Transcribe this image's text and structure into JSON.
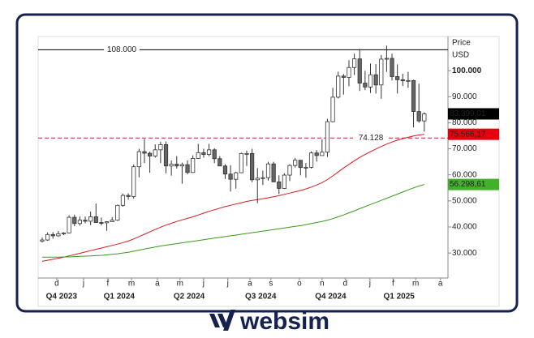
{
  "chart_data": {
    "type": "candlestick",
    "axis_title": "Price",
    "axis_unit": "USD",
    "xlim": [
      -0.75,
      75.4
    ],
    "xticks": [
      {
        "value": 2.7,
        "label": "d"
      },
      {
        "value": 7.7,
        "label": "j"
      },
      {
        "value": 12.2,
        "label": "f"
      },
      {
        "value": 16.6,
        "label": "m"
      },
      {
        "value": 21.4,
        "label": "a"
      },
      {
        "value": 25.6,
        "label": "m"
      },
      {
        "value": 30,
        "label": "j"
      },
      {
        "value": 34.5,
        "label": "j"
      },
      {
        "value": 38.6,
        "label": "a"
      },
      {
        "value": 42.5,
        "label": "s"
      },
      {
        "value": 47.8,
        "label": "o"
      },
      {
        "value": 52,
        "label": "n"
      },
      {
        "value": 56.3,
        "label": "d"
      },
      {
        "value": 60.9,
        "label": "j"
      },
      {
        "value": 65.2,
        "label": "f"
      },
      {
        "value": 69.4,
        "label": "m"
      },
      {
        "value": 74,
        "label": "a"
      }
    ],
    "xgroups": [
      {
        "value": 3.6,
        "label": "Q4 2023"
      },
      {
        "value": 14.3,
        "label": "Q1 2024"
      },
      {
        "value": 27.3,
        "label": "Q2 2024"
      },
      {
        "value": 40.6,
        "label": "Q3 2024"
      },
      {
        "value": 53.6,
        "label": "Q4 2024"
      },
      {
        "value": 66.3,
        "label": "Q1 2025"
      }
    ],
    "ylim": [
      20400,
      113100
    ],
    "yticks": [
      {
        "value": 30000,
        "label": "30.000"
      },
      {
        "value": 40000,
        "label": "40.000"
      },
      {
        "value": 50000,
        "label": "50.000"
      },
      {
        "value": 60000,
        "label": "60.000"
      },
      {
        "value": 70000,
        "label": "70.000"
      },
      {
        "value": 80000,
        "label": "80.000"
      },
      {
        "value": 90000,
        "label": "90.000"
      },
      {
        "value": 100000,
        "label": "100.000"
      }
    ],
    "up_color": "#ffffff",
    "down_color": "#666666",
    "open": [
      34500,
      35000,
      37100,
      36600,
      37400,
      37700,
      43700,
      41300,
      42600,
      42200,
      43900,
      41700,
      41600,
      42000,
      42600,
      48300,
      52100,
      51700,
      63100,
      68900,
      68300,
      67200,
      69600,
      71600,
      63400,
      64100,
      63400,
      63900,
      60900,
      66300,
      68500,
      67800,
      69600,
      66200,
      63400,
      60300,
      58300,
      60800,
      68200,
      68200,
      58100,
      58700,
      58900,
      64200,
      57300,
      54800,
      59900,
      63600,
      65600,
      62800,
      62900,
      68400,
      67400,
      68700,
      80400,
      89800,
      97900,
      97400,
      101200,
      104500,
      95200,
      93700,
      98400,
      94500,
      104400,
      104700,
      97700,
      96500,
      96100,
      96200,
      84300,
      80700
    ],
    "high": [
      36000,
      37900,
      38000,
      38400,
      38000,
      44500,
      44700,
      44000,
      44000,
      45900,
      49000,
      43600,
      42200,
      43800,
      48600,
      52800,
      52900,
      64000,
      70000,
      73800,
      68900,
      71700,
      72700,
      72800,
      65500,
      67200,
      64700,
      65500,
      67500,
      71900,
      70000,
      71900,
      70200,
      67200,
      64100,
      63700,
      61200,
      68500,
      69300,
      70000,
      62600,
      61600,
      65000,
      65000,
      59800,
      60600,
      64100,
      66500,
      65600,
      64500,
      69000,
      69500,
      73600,
      81500,
      93400,
      99600,
      98700,
      104000,
      106500,
      108300,
      99900,
      102700,
      102500,
      106000,
      109600,
      106500,
      102400,
      98800,
      99500,
      96500,
      95000,
      84000
    ],
    "low": [
      34000,
      34700,
      35500,
      36200,
      36900,
      37600,
      40300,
      40500,
      41400,
      40700,
      41700,
      40600,
      38500,
      41900,
      42300,
      47800,
      50500,
      50900,
      59000,
      64500,
      60800,
      66600,
      64500,
      60600,
      59700,
      62400,
      56600,
      60200,
      60800,
      66100,
      66600,
      67200,
      64500,
      63400,
      58400,
      53600,
      54700,
      60700,
      63400,
      57200,
      49100,
      56100,
      57800,
      57200,
      52600,
      54600,
      57600,
      62800,
      59800,
      58900,
      62400,
      65100,
      67400,
      66900,
      80200,
      89300,
      90800,
      94000,
      98300,
      92200,
      92500,
      91400,
      91200,
      89200,
      99500,
      96200,
      91200,
      94100,
      93400,
      78200,
      80000,
      76600
    ],
    "close": [
      35000,
      37100,
      36600,
      37400,
      37700,
      43700,
      41300,
      42600,
      42200,
      43900,
      41700,
      41600,
      42000,
      42600,
      48300,
      52100,
      51700,
      63100,
      68900,
      68300,
      67200,
      69600,
      71600,
      63400,
      64100,
      63400,
      63900,
      60900,
      66300,
      68500,
      67800,
      69600,
      66200,
      63400,
      60300,
      58300,
      60800,
      68200,
      68200,
      58100,
      58700,
      58900,
      64200,
      57300,
      54800,
      59900,
      63600,
      65600,
      62800,
      62900,
      68400,
      67400,
      68700,
      80400,
      89800,
      97900,
      97400,
      101200,
      104500,
      95200,
      93700,
      98400,
      94500,
      104400,
      104700,
      97700,
      96500,
      96100,
      96200,
      84300,
      80700,
      83400
    ],
    "overlays": [
      {
        "color": "#d71920",
        "values": [
          26800,
          27200,
          27600,
          28000,
          28400,
          28900,
          29400,
          29900,
          30400,
          30900,
          31400,
          31900,
          32400,
          32900,
          33400,
          34000,
          34600,
          35400,
          36300,
          37200,
          38100,
          39000,
          39900,
          40700,
          41400,
          42100,
          42700,
          43300,
          43900,
          44600,
          45300,
          46000,
          46600,
          47200,
          47800,
          48300,
          48800,
          49300,
          49800,
          50200,
          50500,
          50800,
          51200,
          51600,
          52000,
          52500,
          53000,
          53500,
          54000,
          54600,
          55300,
          56100,
          57000,
          58200,
          59600,
          61100,
          62600,
          64000,
          65400,
          66700,
          67800,
          68900,
          69900,
          70900,
          71800,
          72600,
          73300,
          73900,
          74400,
          74900,
          75300,
          75566.17
        ]
      },
      {
        "color": "#3a9a1a",
        "values": [
          28400,
          28400,
          28400,
          28400,
          28500,
          28500,
          28600,
          28700,
          28800,
          28900,
          29000,
          29100,
          29300,
          29500,
          29700,
          30000,
          30300,
          30700,
          31100,
          31500,
          31900,
          32300,
          32700,
          33000,
          33300,
          33600,
          33900,
          34200,
          34500,
          34800,
          35100,
          35400,
          35700,
          36000,
          36300,
          36600,
          36900,
          37200,
          37500,
          37800,
          38100,
          38400,
          38700,
          39000,
          39300,
          39600,
          39900,
          40200,
          40500,
          40900,
          41300,
          41700,
          42100,
          42600,
          43200,
          43900,
          44600,
          45400,
          46200,
          47000,
          47800,
          48600,
          49400,
          50200,
          51000,
          51800,
          52600,
          53400,
          54200,
          55000,
          55700,
          56298.61
        ]
      }
    ],
    "hlines": [
      {
        "value": 108000,
        "label": "108.000",
        "color": "#000000",
        "label_color": "#d71920",
        "dashed": false,
        "label_side": "left"
      },
      {
        "value": 74128,
        "label": "74.128",
        "color": "#d71920",
        "label_color": "#d71920",
        "dashed": true,
        "label_side": "right"
      }
    ],
    "price_labels": [
      {
        "value": 83399.01,
        "label": "83.399,01",
        "color": "#000000"
      },
      {
        "value": 75566.17,
        "label": "75.566,17",
        "color": "#e8000f"
      },
      {
        "value": 56298.61,
        "label": "56.298,61",
        "color": "#43b02a"
      }
    ]
  },
  "brand": "websim"
}
